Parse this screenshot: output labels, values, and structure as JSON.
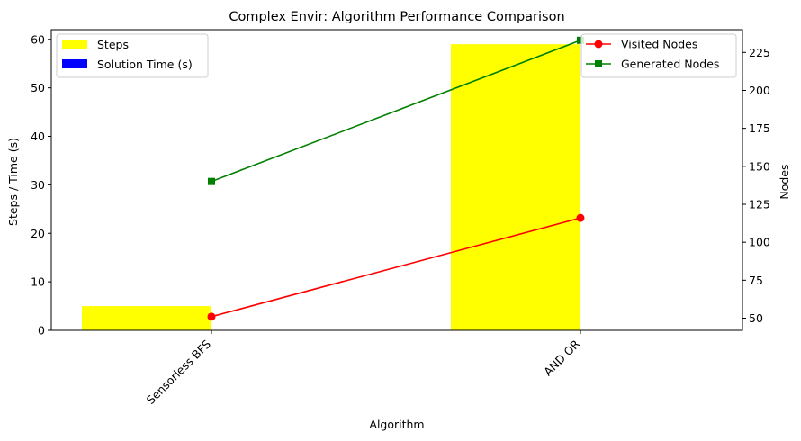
{
  "chart_data": {
    "type": "bar",
    "title": "Complex Envir: Algorithm Performance Comparison",
    "xlabel": "Algorithm",
    "ylabel": "Steps / Time (s)",
    "ylabel_right": "Nodes",
    "categories": [
      "Sensorless BFS",
      "AND OR"
    ],
    "ylim": [
      0,
      62
    ],
    "ylim_right": [
      42,
      240
    ],
    "yticks": [
      0,
      10,
      20,
      30,
      40,
      50,
      60
    ],
    "yticks_right": [
      50,
      75,
      100,
      125,
      150,
      175,
      200,
      225
    ],
    "bar_series": [
      {
        "name": "Steps",
        "color": "#ffff00",
        "values": [
          5,
          59
        ]
      },
      {
        "name": "Solution Time (s)",
        "color": "#0000ff",
        "values": [
          0.01,
          0.02
        ]
      }
    ],
    "line_series": [
      {
        "name": "Visited Nodes",
        "color": "#ff0000",
        "marker": "circle",
        "values": [
          51,
          116
        ]
      },
      {
        "name": "Generated Nodes",
        "color": "#008000",
        "marker": "square",
        "values": [
          140,
          233
        ]
      }
    ],
    "legend_left_placement": "top-left",
    "legend_right_placement": "top-right",
    "grid": false
  }
}
